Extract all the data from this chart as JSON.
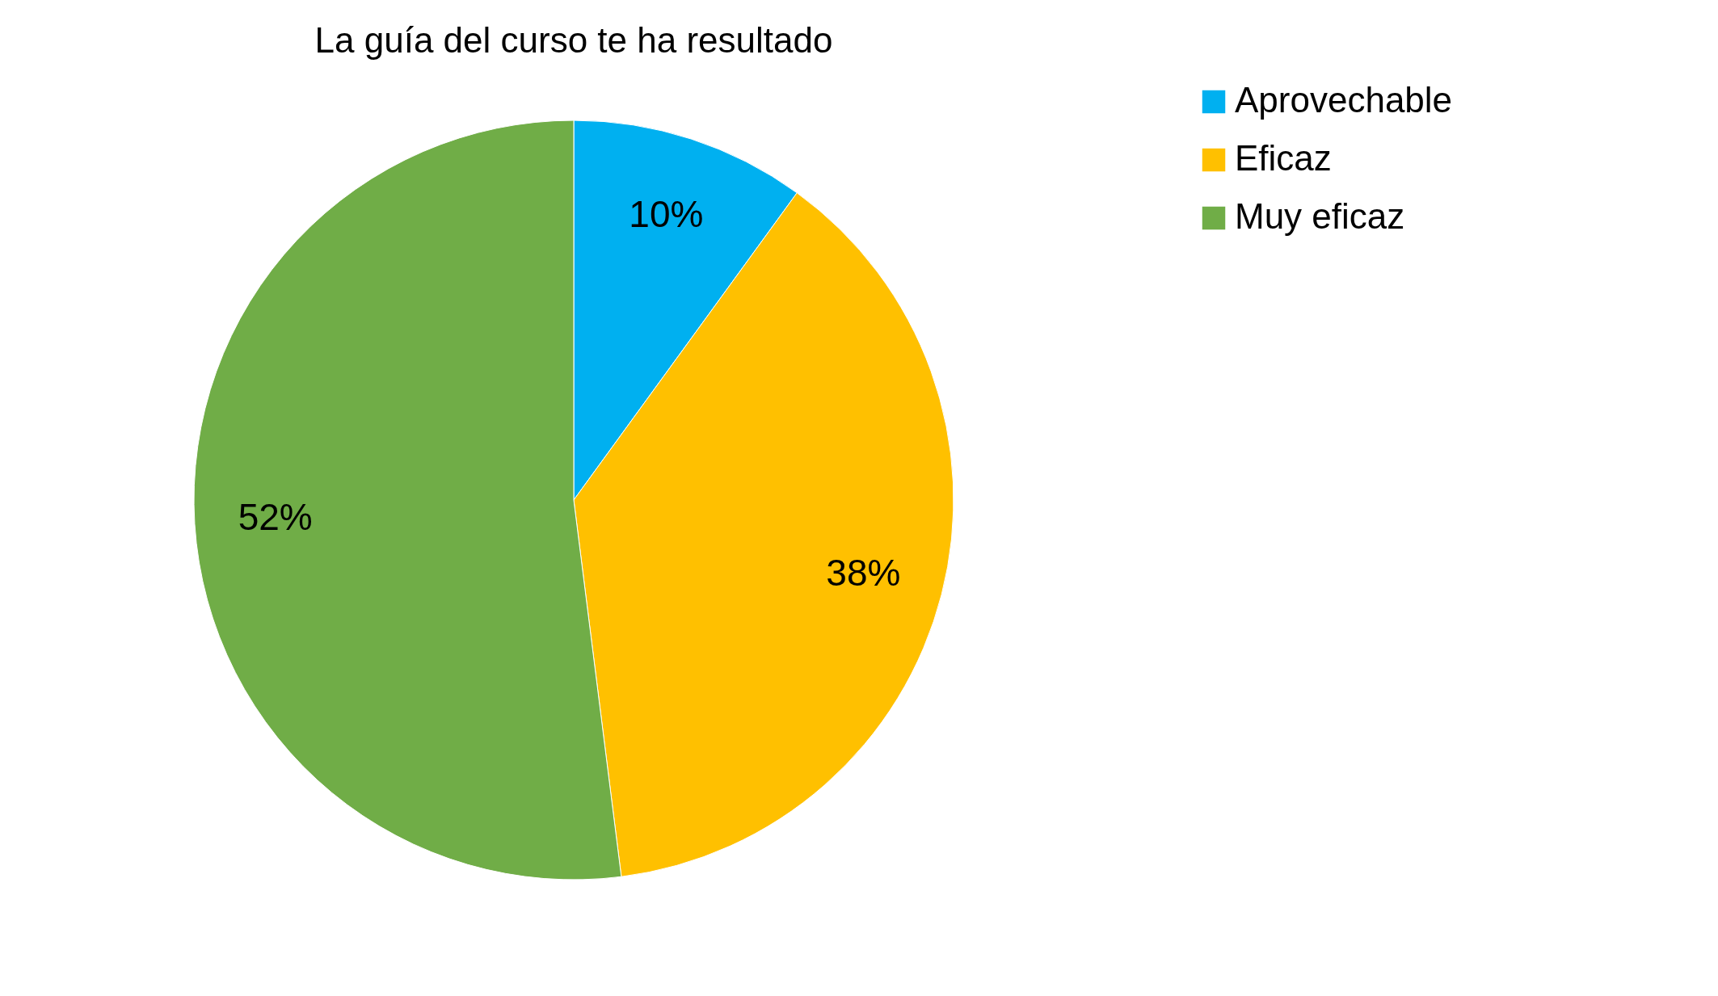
{
  "chart_data": {
    "type": "pie",
    "title": "La guía del curso te ha resultado",
    "categories": [
      "Aprovechable",
      "Eficaz",
      "Muy eficaz"
    ],
    "values": [
      10,
      38,
      52
    ],
    "value_labels": [
      "10%",
      "38%",
      "52%"
    ],
    "colors": [
      "#00b0f0",
      "#ffc000",
      "#70ad47"
    ],
    "legend": "right"
  }
}
